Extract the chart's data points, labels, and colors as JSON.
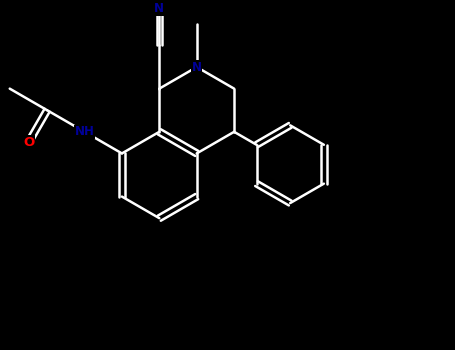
{
  "background_color": "#000000",
  "fig_width": 4.55,
  "fig_height": 3.5,
  "dpi": 100,
  "bond_color": "#ffffff",
  "N_color": "#000099",
  "O_color": "#ff0000",
  "lw": 1.8,
  "atoms": {
    "NH_label": "NH",
    "N_label": "N",
    "CN_label": "N",
    "O_label": "O"
  }
}
